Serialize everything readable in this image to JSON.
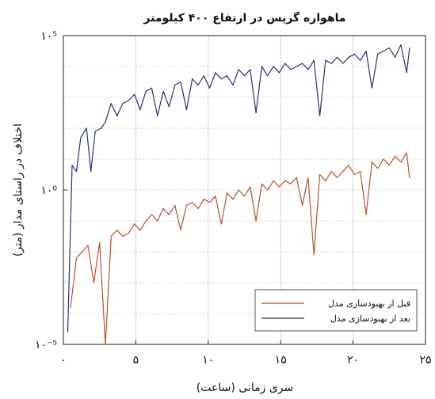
{
  "chart_data": {
    "type": "line",
    "title": "ماهواره گریس در ارتفاع ۴۰۰ کیلومتر",
    "xlabel": "سری زمانی (ساعت)",
    "ylabel": "اختلاف در راستای مدار (متر)",
    "xlim": [
      0,
      25
    ],
    "ylim_log10": [
      -5,
      5
    ],
    "y_scale": "log",
    "x_ticks": [
      0,
      5,
      10,
      15,
      20,
      25
    ],
    "x_tick_labels": [
      "۰",
      "۵",
      "۱۰",
      "۱۵",
      "۲۰",
      "۲۵"
    ],
    "y_ticks_log10": [
      -5,
      0,
      5
    ],
    "y_tick_labels": [
      "۱۰⁻⁵",
      "۱۰⁰",
      "۱۰⁵"
    ],
    "grid": true,
    "legend_position": "bottom-right",
    "series": [
      {
        "name": "قبل از بهبودسازی مدل",
        "color": "#b5532f",
        "x": [
          0.5,
          0.9,
          1.3,
          1.7,
          2.1,
          2.5,
          2.9,
          3.3,
          3.7,
          4.1,
          4.5,
          4.9,
          5.3,
          5.7,
          6.1,
          6.5,
          6.9,
          7.3,
          7.7,
          8.1,
          8.5,
          8.9,
          9.3,
          9.7,
          10.1,
          10.5,
          10.9,
          11.3,
          11.7,
          12.1,
          12.5,
          12.9,
          13.3,
          13.7,
          14.1,
          14.5,
          14.9,
          15.3,
          15.7,
          16.1,
          16.5,
          16.9,
          17.3,
          17.7,
          18.1,
          18.5,
          18.9,
          19.3,
          19.7,
          20.1,
          20.5,
          20.9,
          21.3,
          21.7,
          22.1,
          22.5,
          22.9,
          23.3,
          23.7,
          23.9
        ],
        "log10_y": [
          -3.8,
          -2.2,
          -2.0,
          -1.8,
          -3.0,
          -1.7,
          -5.2,
          -1.5,
          -1.3,
          -1.5,
          -1.4,
          -1.1,
          -1.3,
          -1.0,
          -0.8,
          -1.0,
          -0.6,
          -0.8,
          -0.5,
          -1.3,
          -0.5,
          -0.4,
          -0.6,
          -0.3,
          -0.4,
          -0.2,
          -1.1,
          -0.1,
          -0.3,
          0.0,
          -0.2,
          0.1,
          -1.0,
          0.2,
          0.0,
          0.3,
          0.1,
          0.3,
          0.2,
          0.4,
          -0.5,
          0.4,
          -2.1,
          0.5,
          0.3,
          0.6,
          0.4,
          0.6,
          0.8,
          0.5,
          0.6,
          -0.8,
          0.9,
          0.7,
          1.0,
          0.8,
          1.1,
          0.9,
          1.2,
          0.4
        ],
        "y_values": [
          "1.6e-4",
          "6.3e-3",
          "1e-2",
          "1.6e-2",
          "1e-3",
          "2e-2",
          "6.3e-6",
          "3.2e-2",
          "5e-2",
          "3.2e-2",
          "4e-2",
          "7.9e-2",
          "5e-2",
          "0.1",
          "0.16",
          "0.1",
          "0.25",
          "0.16",
          "0.32",
          "5e-2",
          "0.32",
          "0.4",
          "0.25",
          "0.5",
          "0.4",
          "0.63",
          "7.9e-2",
          "0.79",
          "0.5",
          "1",
          "0.63",
          "1.26",
          "0.1",
          "1.58",
          "1",
          "2",
          "1.26",
          "2",
          "1.58",
          "2.5",
          "0.32",
          "2.5",
          "7.9e-3",
          "3.2",
          "2",
          "4",
          "2.5",
          "4",
          "6.3",
          "3.2",
          "4",
          "0.16",
          "7.9",
          "5",
          "10",
          "6.3",
          "12.6",
          "7.9",
          "15.8",
          "2.5"
        ]
      },
      {
        "name": "بعد از بهبودسازی مدل",
        "color": "#2b2f7e",
        "x": [
          0.3,
          0.6,
          0.9,
          1.2,
          1.6,
          1.9,
          2.2,
          2.6,
          2.9,
          3.3,
          3.7,
          4.1,
          4.5,
          4.9,
          5.3,
          5.7,
          6.1,
          6.5,
          6.9,
          7.3,
          7.7,
          8.1,
          8.5,
          8.9,
          9.3,
          9.7,
          10.1,
          10.5,
          10.9,
          11.3,
          11.7,
          12.1,
          12.5,
          12.9,
          13.3,
          13.7,
          14.1,
          14.5,
          14.9,
          15.3,
          15.7,
          16.1,
          16.5,
          16.9,
          17.3,
          17.7,
          18.1,
          18.5,
          18.9,
          19.3,
          19.7,
          20.1,
          20.5,
          20.9,
          21.3,
          21.7,
          22.1,
          22.5,
          22.9,
          23.3,
          23.7,
          23.9
        ],
        "log10_y": [
          -4.6,
          0.8,
          0.6,
          1.7,
          2.0,
          0.6,
          1.9,
          2.0,
          2.2,
          2.8,
          2.4,
          2.8,
          2.9,
          3.1,
          2.6,
          3.2,
          3.3,
          2.4,
          3.2,
          2.7,
          3.4,
          3.5,
          2.6,
          3.6,
          3.4,
          3.7,
          3.3,
          3.8,
          3.6,
          3.7,
          3.4,
          3.9,
          3.7,
          3.9,
          2.5,
          4.0,
          3.7,
          4.0,
          3.8,
          4.1,
          3.9,
          4.0,
          4.1,
          3.9,
          4.2,
          2.4,
          4.2,
          4.1,
          4.3,
          4.1,
          4.3,
          4.4,
          4.2,
          4.5,
          3.3,
          4.4,
          4.5,
          4.6,
          4.3,
          4.7,
          3.8,
          4.6
        ],
        "y_values": [
          "2.5e-5",
          "6.3",
          "4",
          "50",
          "100",
          "4",
          "79",
          "100",
          "158",
          "631",
          "251",
          "631",
          "794",
          "1259",
          "398",
          "1585",
          "1995",
          "251",
          "1585",
          "501",
          "2512",
          "3162",
          "398",
          "3981",
          "2512",
          "5012",
          "1995",
          "6310",
          "3981",
          "5012",
          "2512",
          "7943",
          "5012",
          "7943",
          "316",
          "1e4",
          "5012",
          "1e4",
          "6310",
          "12589",
          "7943",
          "1e4",
          "12589",
          "7943",
          "15849",
          "251",
          "15849",
          "12589",
          "19953",
          "12589",
          "19953",
          "25119",
          "15849",
          "31623",
          "1995",
          "25119",
          "31623",
          "39811",
          "19953",
          "50119",
          "6310",
          "39811"
        ]
      }
    ]
  }
}
